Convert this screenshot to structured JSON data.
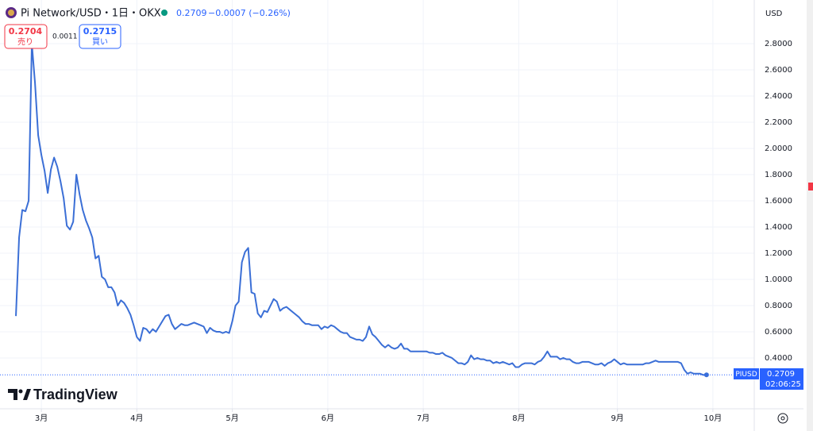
{
  "chart_data": {
    "type": "line",
    "title": "Pi Network/USD・1日・OKX",
    "last": 0.2709,
    "change": "−0.0007 (−0.26%)",
    "sell": {
      "price": 0.2704,
      "label": "売り"
    },
    "spread": 0.0011,
    "buy": {
      "price": 0.2715,
      "label": "買い"
    },
    "currency": "USD",
    "symbol_label": "PIUSD",
    "countdown": "02:06:25",
    "brand": "TradingView",
    "color": "#3b6fd6",
    "grid": true,
    "xlim": [
      -5,
      232
    ],
    "xticks": [
      {
        "value": 8,
        "label": "3月"
      },
      {
        "value": 38,
        "label": "4月"
      },
      {
        "value": 68,
        "label": "5月"
      },
      {
        "value": 98,
        "label": "6月"
      },
      {
        "value": 128,
        "label": "7月"
      },
      {
        "value": 158,
        "label": "8月"
      },
      {
        "value": 189,
        "label": "9月"
      },
      {
        "value": 219,
        "label": "10月"
      }
    ],
    "ylim": [
      0.012,
      2.921
    ],
    "yticks": [
      {
        "value": 0.4,
        "label": "0.4000"
      },
      {
        "value": 0.6,
        "label": "0.6000"
      },
      {
        "value": 0.8,
        "label": "0.8000"
      },
      {
        "value": 1.0,
        "label": "1.0000"
      },
      {
        "value": 1.2,
        "label": "1.2000"
      },
      {
        "value": 1.4,
        "label": "1.4000"
      },
      {
        "value": 1.6,
        "label": "1.6000"
      },
      {
        "value": 1.8,
        "label": "1.8000"
      },
      {
        "value": 2.0,
        "label": "2.0000"
      },
      {
        "value": 2.2,
        "label": "2.2000"
      },
      {
        "value": 2.4,
        "label": "2.4000"
      },
      {
        "value": 2.6,
        "label": "2.6000"
      },
      {
        "value": 2.8,
        "label": "2.8000"
      }
    ],
    "values": [
      0.72,
      1.32,
      1.53,
      1.52,
      1.6,
      2.8,
      2.5,
      2.1,
      1.95,
      1.83,
      1.66,
      1.84,
      1.93,
      1.86,
      1.75,
      1.62,
      1.41,
      1.38,
      1.44,
      1.8,
      1.65,
      1.53,
      1.45,
      1.39,
      1.32,
      1.16,
      1.18,
      1.02,
      1.0,
      0.94,
      0.94,
      0.9,
      0.8,
      0.84,
      0.82,
      0.78,
      0.73,
      0.65,
      0.56,
      0.53,
      0.63,
      0.62,
      0.59,
      0.62,
      0.6,
      0.64,
      0.68,
      0.72,
      0.73,
      0.66,
      0.62,
      0.64,
      0.66,
      0.65,
      0.65,
      0.66,
      0.67,
      0.66,
      0.65,
      0.64,
      0.59,
      0.63,
      0.61,
      0.6,
      0.6,
      0.59,
      0.6,
      0.59,
      0.68,
      0.8,
      0.83,
      1.13,
      1.21,
      1.24,
      0.9,
      0.89,
      0.74,
      0.71,
      0.76,
      0.75,
      0.8,
      0.85,
      0.83,
      0.76,
      0.78,
      0.79,
      0.77,
      0.75,
      0.73,
      0.71,
      0.68,
      0.66,
      0.66,
      0.65,
      0.65,
      0.65,
      0.62,
      0.64,
      0.63,
      0.65,
      0.64,
      0.62,
      0.6,
      0.59,
      0.59,
      0.56,
      0.55,
      0.54,
      0.54,
      0.53,
      0.56,
      0.64,
      0.58,
      0.56,
      0.53,
      0.5,
      0.48,
      0.5,
      0.48,
      0.47,
      0.48,
      0.51,
      0.47,
      0.47,
      0.45,
      0.45,
      0.45,
      0.45,
      0.45,
      0.45,
      0.44,
      0.44,
      0.43,
      0.43,
      0.44,
      0.42,
      0.41,
      0.4,
      0.38,
      0.36,
      0.36,
      0.35,
      0.37,
      0.42,
      0.39,
      0.4,
      0.39,
      0.39,
      0.38,
      0.38,
      0.36,
      0.37,
      0.36,
      0.37,
      0.36,
      0.35,
      0.36,
      0.33,
      0.33,
      0.35,
      0.36,
      0.36,
      0.36,
      0.35,
      0.37,
      0.38,
      0.41,
      0.45,
      0.41,
      0.41,
      0.41,
      0.39,
      0.4,
      0.39,
      0.39,
      0.37,
      0.36,
      0.36,
      0.37,
      0.37,
      0.37,
      0.36,
      0.35,
      0.35,
      0.36,
      0.34,
      0.36,
      0.37,
      0.39,
      0.37,
      0.35,
      0.36,
      0.35,
      0.35,
      0.35,
      0.35,
      0.35,
      0.35,
      0.36,
      0.36,
      0.37,
      0.38,
      0.37,
      0.37,
      0.37,
      0.37,
      0.37,
      0.37,
      0.37,
      0.36,
      0.31,
      0.28,
      0.29,
      0.28,
      0.28,
      0.28,
      0.27,
      0.2709
    ]
  }
}
